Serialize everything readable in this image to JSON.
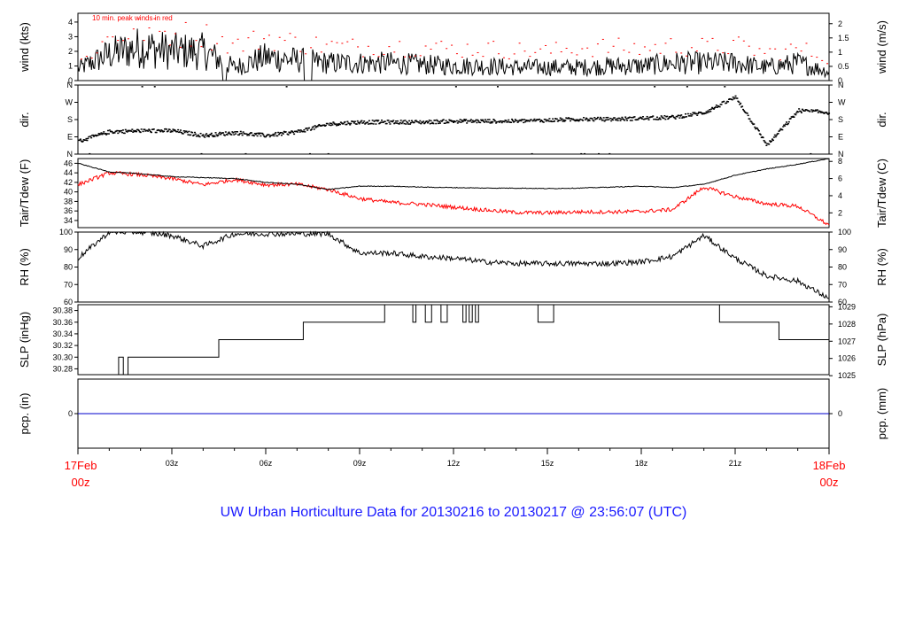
{
  "title": "UW Urban Horticulture Data for 20130216  to  20130217 @ 23:56:07  (UTC)",
  "colors": {
    "title": "#1a1aff",
    "edge_time": "#ff0000",
    "peak": "#ff0000",
    "tdew": "#ff0000",
    "line": "#000000",
    "precip": "#0000cc"
  },
  "time_axis": {
    "start": {
      "day": "17Feb",
      "hour": "00z"
    },
    "end": {
      "day": "18Feb",
      "hour": "00z"
    },
    "ticks": [
      "03z",
      "06z",
      "09z",
      "12z",
      "15z",
      "18z",
      "21z"
    ]
  },
  "chart_data": [
    {
      "type": "line",
      "panel": "wind",
      "ylabel": "wind (kts)",
      "ylabel_right": "wind (m/s)",
      "annotation": "10 min. peak winds in red",
      "ylim": [
        0,
        4.6
      ],
      "yticks": [
        "0",
        "1",
        "2",
        "3",
        "4"
      ],
      "yticks_right": [
        "0",
        "0.5",
        "1",
        "1.5",
        "2"
      ],
      "x_hours": [
        0,
        1,
        2,
        3,
        4,
        5,
        6,
        7,
        8,
        9,
        10,
        11,
        12,
        13,
        14,
        15,
        16,
        17,
        18,
        19,
        20,
        21,
        22,
        23,
        24
      ],
      "series": [
        {
          "values": [
            0.8,
            1.8,
            2.3,
            2.0,
            2.0,
            0.9,
            1.6,
            1.4,
            1.2,
            1.2,
            1.2,
            1.1,
            1.0,
            1.0,
            0.9,
            0.9,
            0.9,
            1.0,
            1.0,
            1.2,
            1.2,
            1.2,
            0.9,
            1.2,
            0.6
          ]
        },
        {
          "values": [
            1.2,
            3.0,
            3.5,
            3.2,
            3.2,
            2.4,
            3.0,
            2.6,
            2.4,
            2.3,
            2.4,
            2.3,
            2.2,
            2.2,
            2.1,
            2.0,
            2.3,
            2.3,
            2.2,
            2.4,
            2.3,
            2.4,
            1.9,
            2.2,
            1.6
          ]
        }
      ]
    },
    {
      "type": "scatter",
      "panel": "dir",
      "ylabel": "dir.",
      "ylabel_right": "dir.",
      "yticks": [
        "N",
        "E",
        "S",
        "W",
        "N"
      ],
      "ylim": [
        0,
        360
      ],
      "x_hours": [
        0,
        1,
        2,
        3,
        4,
        5,
        6,
        7,
        8,
        9,
        10,
        11,
        12,
        13,
        14,
        15,
        16,
        17,
        18,
        19,
        20,
        21,
        22,
        23,
        24
      ],
      "values": [
        70,
        120,
        125,
        125,
        100,
        115,
        100,
        120,
        160,
        170,
        170,
        170,
        175,
        175,
        175,
        180,
        185,
        185,
        190,
        195,
        220,
        300,
        50,
        230,
        220
      ]
    },
    {
      "type": "line",
      "panel": "temp",
      "ylabel": "Tair/Tdew (F)",
      "ylabel_right": "Tair/Tdew (C)",
      "ylim": [
        32.5,
        47
      ],
      "yticks": [
        "34",
        "36",
        "38",
        "40",
        "42",
        "44",
        "46"
      ],
      "yticks_right": [
        "2",
        "4",
        "6",
        "8"
      ],
      "x_hours": [
        0,
        1,
        2,
        3,
        4,
        5,
        6,
        7,
        8,
        9,
        10,
        11,
        12,
        13,
        14,
        15,
        16,
        17,
        18,
        19,
        20,
        21,
        22,
        23,
        24
      ],
      "series": [
        {
          "values": [
            46.0,
            44.2,
            43.8,
            43.2,
            43.0,
            42.8,
            42.0,
            41.6,
            40.5,
            41.2,
            41.2,
            41.0,
            40.9,
            40.8,
            40.8,
            40.7,
            40.8,
            41.0,
            41.2,
            40.9,
            41.6,
            43.5,
            44.8,
            45.8,
            47.0
          ]
        },
        {
          "values": [
            41.5,
            44.0,
            43.6,
            42.8,
            41.5,
            42.6,
            41.5,
            41.6,
            40.5,
            38.6,
            37.8,
            37.4,
            36.8,
            36.2,
            35.7,
            35.6,
            35.8,
            35.8,
            35.9,
            36.3,
            41.0,
            39.0,
            37.5,
            37.0,
            33.0
          ]
        }
      ]
    },
    {
      "type": "line",
      "panel": "rh",
      "ylabel": "RH (%)",
      "ylabel_right": "RH (%)",
      "ylim": [
        60,
        100
      ],
      "yticks": [
        "60",
        "70",
        "80",
        "90",
        "100"
      ],
      "yticks_right": [
        "60",
        "70",
        "80",
        "90",
        "100"
      ],
      "x_hours": [
        0,
        1,
        2,
        3,
        4,
        5,
        6,
        7,
        8,
        9,
        10,
        11,
        12,
        13,
        14,
        15,
        16,
        17,
        18,
        19,
        20,
        21,
        22,
        23,
        24
      ],
      "values": [
        85,
        100,
        100,
        98,
        92,
        99,
        99,
        99,
        99,
        88,
        88,
        86,
        85,
        83,
        82,
        82,
        82,
        82,
        83,
        86,
        98,
        85,
        75,
        72,
        62
      ]
    },
    {
      "type": "line",
      "panel": "slp",
      "ylabel": "SLP (inHg)",
      "ylabel_right": "SLP (hPa)",
      "ylim": [
        30.27,
        30.39
      ],
      "yticks": [
        "30.28",
        "30.30",
        "30.32",
        "30.34",
        "30.36",
        "30.38"
      ],
      "yticks_right": [
        "1025",
        "1026",
        "1027",
        "1028",
        "1029"
      ],
      "x_hours": [
        0,
        1.3,
        1.45,
        1.6,
        1.8,
        4.5,
        7.2,
        9.8,
        10.7,
        10.8,
        11.1,
        11.3,
        11.6,
        11.8,
        12.3,
        12.4,
        12.5,
        12.6,
        12.7,
        12.8,
        13.2,
        14.7,
        15.2,
        20.5,
        22.4,
        24
      ],
      "values": [
        30.27,
        30.3,
        30.27,
        30.3,
        30.3,
        30.33,
        30.36,
        30.39,
        30.36,
        30.39,
        30.36,
        30.39,
        30.36,
        30.39,
        30.36,
        30.39,
        30.36,
        30.39,
        30.36,
        30.39,
        30.39,
        30.36,
        30.39,
        30.36,
        30.33,
        30.33
      ]
    },
    {
      "type": "line",
      "panel": "pcp",
      "ylabel": "pcp. (in)",
      "ylabel_right": "pcp. (mm)",
      "ylim": [
        -1,
        1
      ],
      "yticks": [
        "0"
      ],
      "yticks_right": [
        "0"
      ],
      "x_hours": [
        0,
        24
      ],
      "values": [
        0,
        0
      ]
    }
  ]
}
